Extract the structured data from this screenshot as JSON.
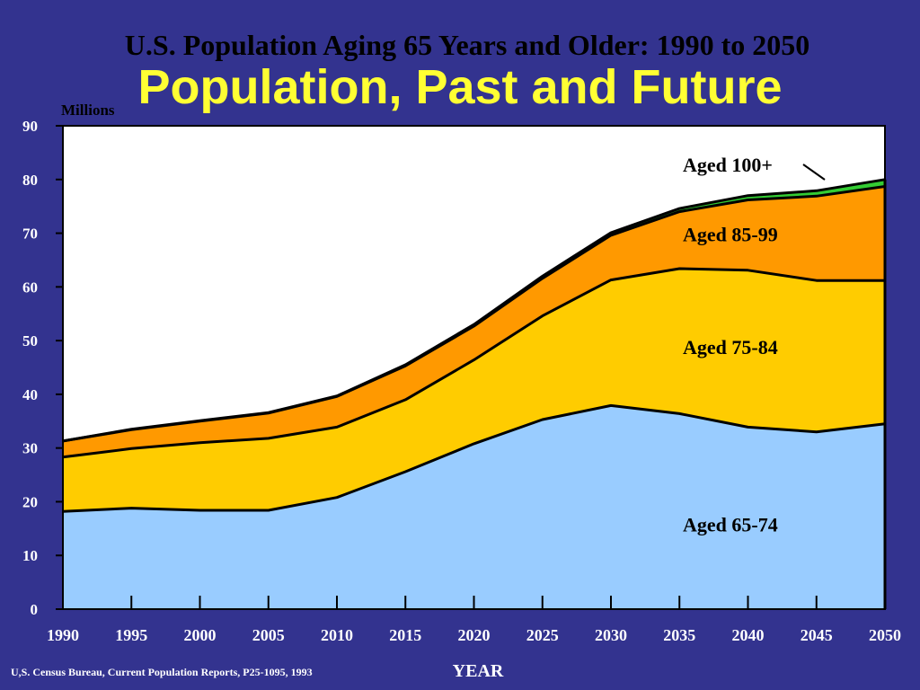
{
  "page": {
    "subtitle": "U.S. Population Aging 65 Years and Older: 1990 to 2050",
    "title": "Population, Past and Future",
    "source": "U,S. Census Bureau, Current Population Reports, P25-1095, 1993"
  },
  "chart_data": {
    "type": "area",
    "stacked": true,
    "ylabel": "Millions",
    "xlabel": "YEAR",
    "x": [
      1990,
      1995,
      2000,
      2005,
      2010,
      2015,
      2020,
      2025,
      2030,
      2035,
      2040,
      2045,
      2050
    ],
    "xticks": [
      "1990",
      "1995",
      "2000",
      "2005",
      "2010",
      "2015",
      "2020",
      "2025",
      "2030",
      "2035",
      "2040",
      "2045",
      "2050"
    ],
    "yticks": [
      "0",
      "10",
      "20",
      "30",
      "40",
      "50",
      "60",
      "70",
      "80",
      "90"
    ],
    "ylim": [
      0,
      90
    ],
    "grid": false,
    "series": [
      {
        "name": "Aged 65-74",
        "color": "#99ccff",
        "values": [
          18.2,
          18.8,
          18.4,
          18.4,
          20.8,
          25.6,
          30.8,
          35.3,
          37.9,
          36.4,
          33.9,
          33.0,
          34.5
        ]
      },
      {
        "name": "Aged 75-84",
        "color": "#ffcc00",
        "values": [
          10.1,
          11.1,
          12.6,
          13.4,
          13.1,
          13.4,
          15.6,
          19.3,
          23.4,
          27.0,
          29.2,
          28.2,
          26.7
        ]
      },
      {
        "name": "Aged 85-99",
        "color": "#ff9900",
        "values": [
          3.0,
          3.5,
          4.0,
          4.7,
          5.7,
          6.3,
          6.3,
          7.0,
          8.3,
          10.6,
          13.1,
          15.7,
          17.5
        ]
      },
      {
        "name": "Aged 100+",
        "color": "#33cc33",
        "values": [
          0.0,
          0.1,
          0.1,
          0.1,
          0.1,
          0.2,
          0.3,
          0.4,
          0.5,
          0.6,
          0.8,
          1.0,
          1.3
        ]
      }
    ],
    "labels": [
      "Aged 100+",
      "Aged 85-99",
      "Aged 75-84",
      "Aged 65-74"
    ],
    "plot_background": "#ffffff"
  }
}
